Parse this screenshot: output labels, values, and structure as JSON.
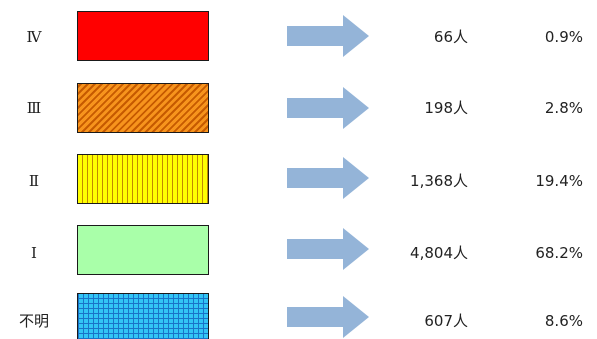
{
  "rows": [
    {
      "level": "Ⅳ",
      "count": "66人",
      "percent": "0.9%",
      "pattern": "solid",
      "color": "#ff0000"
    },
    {
      "level": "Ⅲ",
      "count": "198人",
      "percent": "2.8%",
      "pattern": "diagonal-hatch",
      "color": "#f7941d",
      "accent": "#c65a00"
    },
    {
      "level": "Ⅱ",
      "count": "1,368人",
      "percent": "19.4%",
      "pattern": "vertical-stripes",
      "color": "#ffff00",
      "accent": "#c08a00"
    },
    {
      "level": "Ⅰ",
      "count": "4,804人",
      "percent": "68.2%",
      "pattern": "solid",
      "color": "#a9ffa9"
    },
    {
      "level": "不明",
      "count": "607人",
      "percent": "8.6%",
      "pattern": "grid",
      "color": "#33c5f5",
      "accent": "#1a73c8"
    }
  ],
  "arrow_color": "#94b4d8"
}
